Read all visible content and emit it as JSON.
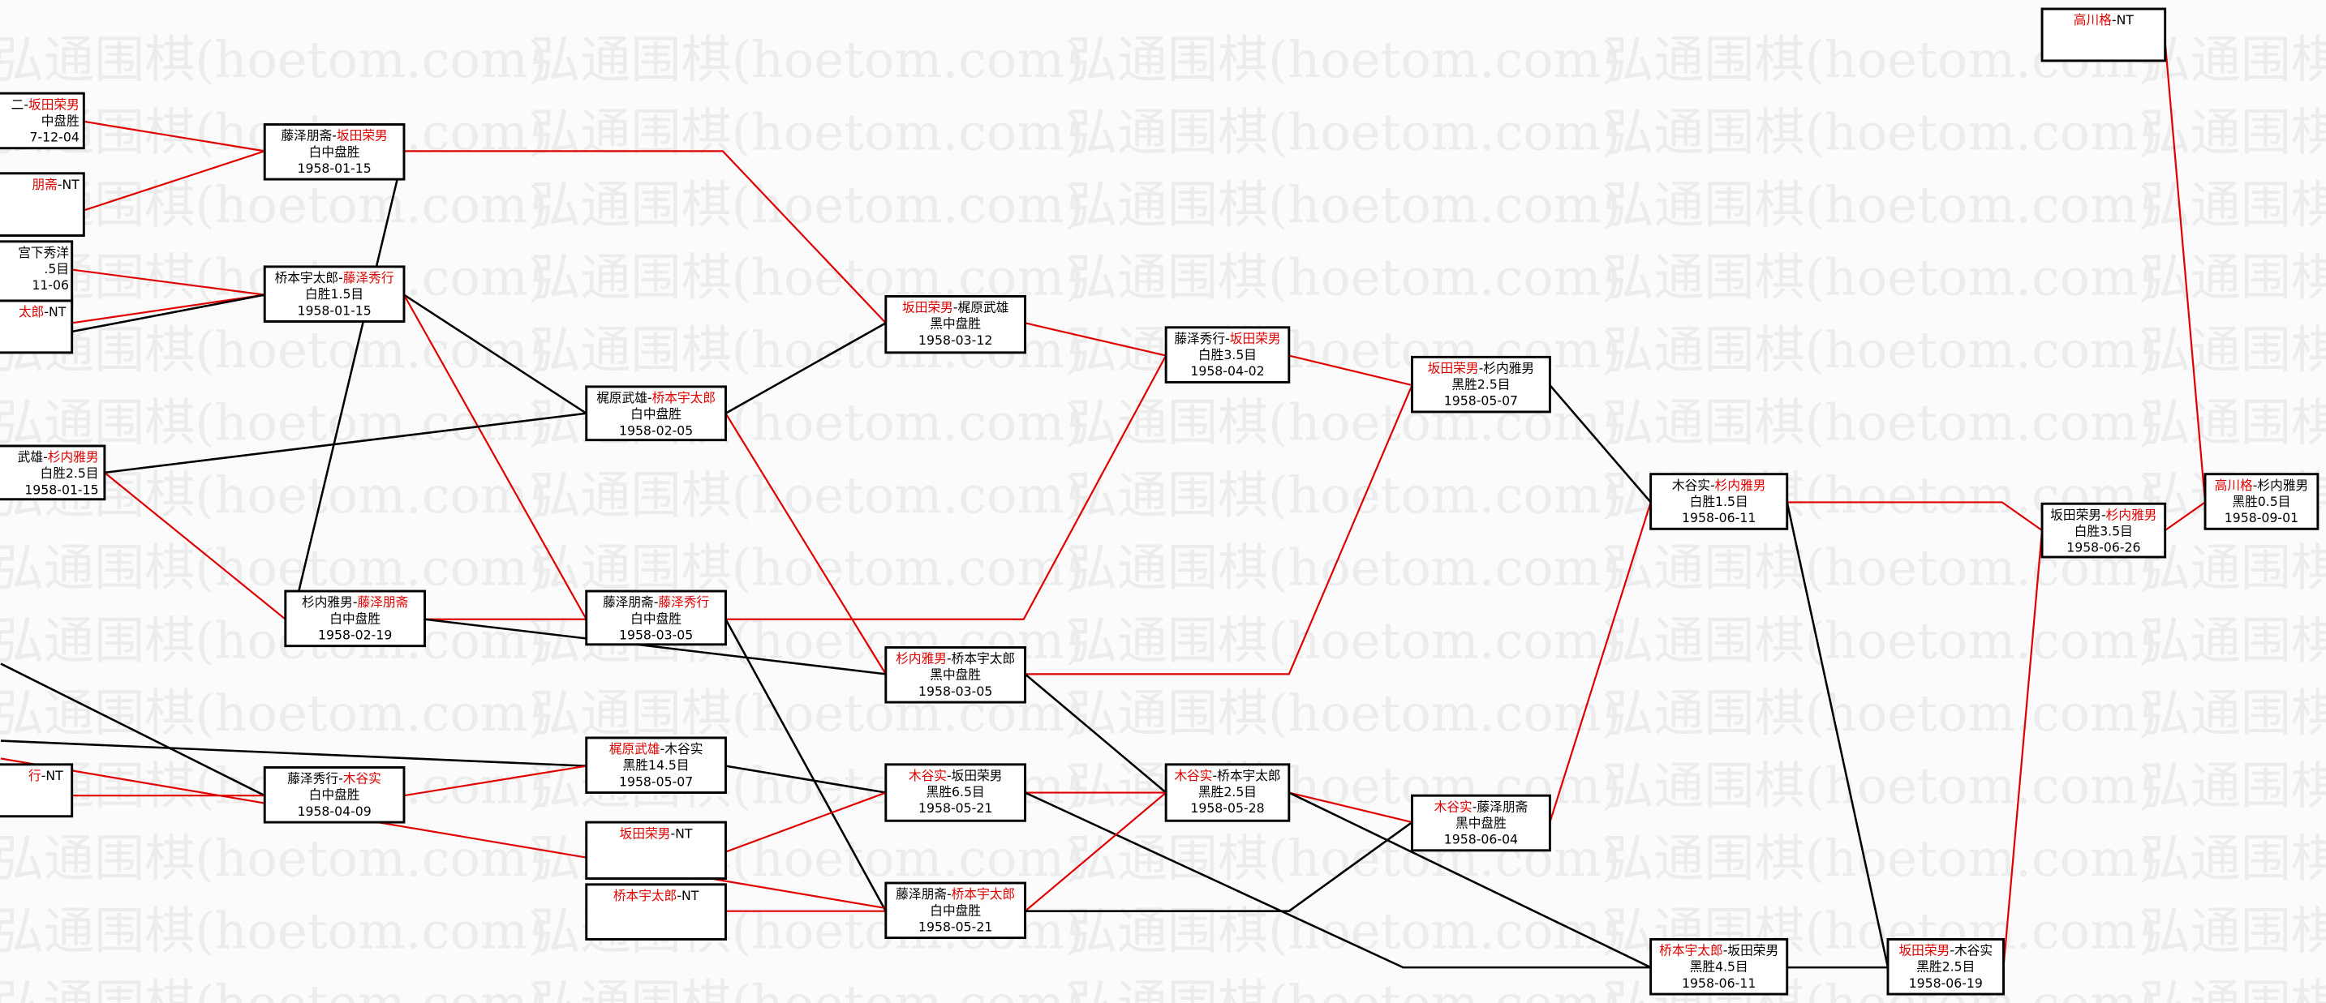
{
  "watermark": "弘通围棋(hoetom.com)",
  "colors": {
    "winner": "#e00000",
    "line_winner": "#e00000",
    "line_loser": "#000000",
    "background": "#fbfbfb"
  },
  "partial_nodes": [
    {
      "l1": [
        {
          "t": "二-"
        },
        {
          "t": "坂田荣男",
          "red": true
        }
      ],
      "l2": "中盘胜",
      "l3": "7-12-04"
    },
    {
      "l1": [
        {
          "t": "朋斋",
          "red": true
        },
        {
          "t": "-NT"
        }
      ],
      "l2": "",
      "l3": ""
    },
    {
      "l1": [
        {
          "t": "宫下秀洋"
        }
      ],
      "l2": ".5目",
      "l3": "11-06"
    },
    {
      "l1": [
        {
          "t": "太郎",
          "red": true
        },
        {
          "t": "-NT"
        }
      ],
      "l2": "",
      "l3": ""
    },
    {
      "l1": [
        {
          "t": "武雄-"
        },
        {
          "t": "杉内雅男",
          "red": true
        }
      ],
      "l2": "白胜2.5目",
      "l3": "1958-01-15"
    },
    {
      "l1": [
        {
          "t": "行",
          "red": true
        },
        {
          "t": "-NT"
        }
      ],
      "l2": "",
      "l3": ""
    }
  ],
  "nodes": [
    {
      "l1": [
        {
          "t": "藤泽朋斋-"
        },
        {
          "t": "坂田荣男",
          "red": true
        }
      ],
      "l2": "白中盘胜",
      "l3": "1958-01-15"
    },
    {
      "l1": [
        {
          "t": "桥本宇太郎-"
        },
        {
          "t": "藤泽秀行",
          "red": true
        }
      ],
      "l2": "白胜1.5目",
      "l3": "1958-01-15"
    },
    {
      "l1": [
        {
          "t": "梶原武雄-"
        },
        {
          "t": "桥本宇太郎",
          "red": true
        }
      ],
      "l2": "白中盘胜",
      "l3": "1958-02-05"
    },
    {
      "l1": [
        {
          "t": "杉内雅男-"
        },
        {
          "t": "藤泽朋斋",
          "red": true
        }
      ],
      "l2": "白中盘胜",
      "l3": "1958-02-19"
    },
    {
      "l1": [
        {
          "t": "藤泽朋斋-"
        },
        {
          "t": "藤泽秀行",
          "red": true
        }
      ],
      "l2": "白中盘胜",
      "l3": "1958-03-05"
    },
    {
      "l1": [
        {
          "t": "藤泽秀行-"
        },
        {
          "t": "木谷实",
          "red": true
        }
      ],
      "l2": "白中盘胜",
      "l3": "1958-04-09"
    },
    {
      "l1": [
        {
          "t": "梶原武雄",
          "red": true
        },
        {
          "t": "-木谷实"
        }
      ],
      "l2": "黑胜14.5目",
      "l3": "1958-05-07"
    },
    {
      "l1": [
        {
          "t": "坂田荣男",
          "red": true
        },
        {
          "t": "-NT"
        }
      ],
      "l2": "",
      "l3": ""
    },
    {
      "l1": [
        {
          "t": "桥本宇太郎",
          "red": true
        },
        {
          "t": "-NT"
        }
      ],
      "l2": "",
      "l3": ""
    },
    {
      "l1": [
        {
          "t": "坂田荣男",
          "red": true
        },
        {
          "t": "-梶原武雄"
        }
      ],
      "l2": "黑中盘胜",
      "l3": "1958-03-12"
    },
    {
      "l1": [
        {
          "t": "杉内雅男",
          "red": true
        },
        {
          "t": "-桥本宇太郎"
        }
      ],
      "l2": "黑中盘胜",
      "l3": "1958-03-05"
    },
    {
      "l1": [
        {
          "t": "木谷实",
          "red": true
        },
        {
          "t": "-坂田荣男"
        }
      ],
      "l2": "黑胜6.5目",
      "l3": "1958-05-21"
    },
    {
      "l1": [
        {
          "t": "藤泽朋斋-"
        },
        {
          "t": "桥本宇太郎",
          "red": true
        }
      ],
      "l2": "白中盘胜",
      "l3": "1958-05-21"
    },
    {
      "l1": [
        {
          "t": "藤泽秀行-"
        },
        {
          "t": "坂田荣男",
          "red": true
        }
      ],
      "l2": "白胜3.5目",
      "l3": "1958-04-02"
    },
    {
      "l1": [
        {
          "t": "木谷实",
          "red": true
        },
        {
          "t": "-桥本宇太郎"
        }
      ],
      "l2": "黑胜2.5目",
      "l3": "1958-05-28"
    },
    {
      "l1": [
        {
          "t": "坂田荣男",
          "red": true
        },
        {
          "t": "-杉内雅男"
        }
      ],
      "l2": "黑胜2.5目",
      "l3": "1958-05-07"
    },
    {
      "l1": [
        {
          "t": "木谷实",
          "red": true
        },
        {
          "t": "-藤泽朋斋"
        }
      ],
      "l2": "黑中盘胜",
      "l3": "1958-06-04"
    },
    {
      "l1": [
        {
          "t": "木谷实-"
        },
        {
          "t": "杉内雅男",
          "red": true
        }
      ],
      "l2": "白胜1.5目",
      "l3": "1958-06-11"
    },
    {
      "l1": [
        {
          "t": "桥本宇太郎",
          "red": true
        },
        {
          "t": "-坂田荣男"
        }
      ],
      "l2": "黑胜4.5目",
      "l3": "1958-06-11"
    },
    {
      "l1": [
        {
          "t": "坂田荣男",
          "red": true
        },
        {
          "t": "-木谷实"
        }
      ],
      "l2": "黑胜2.5目",
      "l3": "1958-06-19"
    },
    {
      "l1": [
        {
          "t": "坂田荣男-"
        },
        {
          "t": "杉内雅男",
          "red": true
        }
      ],
      "l2": "白胜3.5目",
      "l3": "1958-06-26"
    },
    {
      "l1": [
        {
          "t": "高川格",
          "red": true
        },
        {
          "t": "-杉内雅男"
        }
      ],
      "l2": "黑胜0.5目",
      "l3": "1958-09-01"
    },
    {
      "l1": [
        {
          "t": "高川格",
          "red": true
        },
        {
          "t": "-NT"
        }
      ],
      "l2": "",
      "l3": ""
    }
  ]
}
